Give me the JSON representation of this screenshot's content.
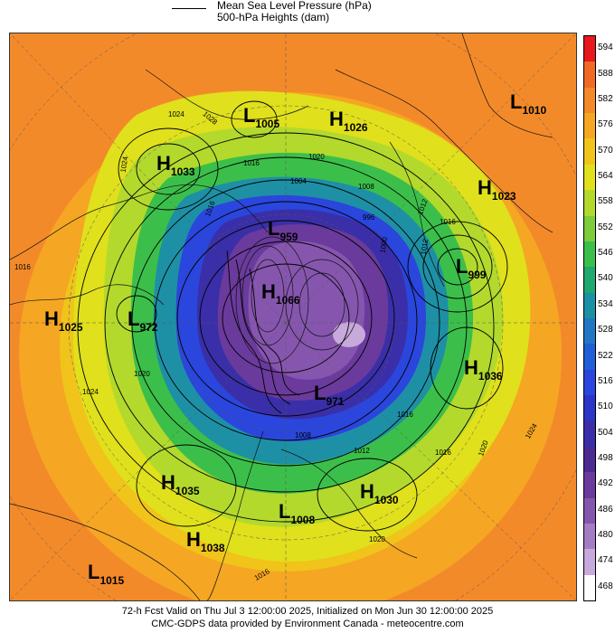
{
  "legend": {
    "line1": "Mean Sea Level Pressure (hPa)",
    "line2": "500-hPa Heights (dam)"
  },
  "colorbar": {
    "levels": [
      "594",
      "588",
      "582",
      "576",
      "570",
      "564",
      "558",
      "552",
      "546",
      "540",
      "534",
      "528",
      "522",
      "516",
      "510",
      "504",
      "498",
      "492",
      "486",
      "480",
      "474",
      "468"
    ],
    "colors": [
      "#e8181c",
      "#f06a26",
      "#f38a2a",
      "#f5a623",
      "#f0c41a",
      "#e0e01c",
      "#b3d92d",
      "#7dcc3b",
      "#3cbf4a",
      "#1fa870",
      "#1e90a5",
      "#2277c5",
      "#1f5fd6",
      "#2a46dd",
      "#2c35c6",
      "#3a2fa8",
      "#4c2a93",
      "#6a3a9c",
      "#8656ae",
      "#a47cc3",
      "#c7a9dc",
      "#ffffff"
    ]
  },
  "systems": [
    {
      "type": "L",
      "value": "1005"
    },
    {
      "type": "H",
      "value": "1026"
    },
    {
      "type": "L",
      "value": "1010"
    },
    {
      "type": "H",
      "value": "1033"
    },
    {
      "type": "H",
      "value": "1023"
    },
    {
      "type": "L",
      "value": "959"
    },
    {
      "type": "L",
      "value": "999"
    },
    {
      "type": "H",
      "value": "1066"
    },
    {
      "type": "H",
      "value": "1025"
    },
    {
      "type": "L",
      "value": "972"
    },
    {
      "type": "H",
      "value": "1036"
    },
    {
      "type": "L",
      "value": "971"
    },
    {
      "type": "H",
      "value": "1035"
    },
    {
      "type": "H",
      "value": "1030"
    },
    {
      "type": "L",
      "value": "1008"
    },
    {
      "type": "H",
      "value": "1038"
    },
    {
      "type": "L",
      "value": "1015"
    }
  ],
  "isobar_labels": [
    "1024",
    "1028",
    "1016",
    "1020",
    "1024",
    "1016",
    "1004",
    "1008",
    "1012",
    "1016",
    "1016",
    "1012",
    "996",
    "1000",
    "1020",
    "1024",
    "1020",
    "1016",
    "1008",
    "1012",
    "1016",
    "1020",
    "1024",
    "1016"
  ],
  "footer": {
    "line1": "72-h Fcst Valid on Thu Jul  3 12:00:00 2025, Initialized on Mon Jun 30 12:00:00 2025",
    "line2": "CMC-GDPS data provided by Environment Canada - meteocentre.com"
  }
}
